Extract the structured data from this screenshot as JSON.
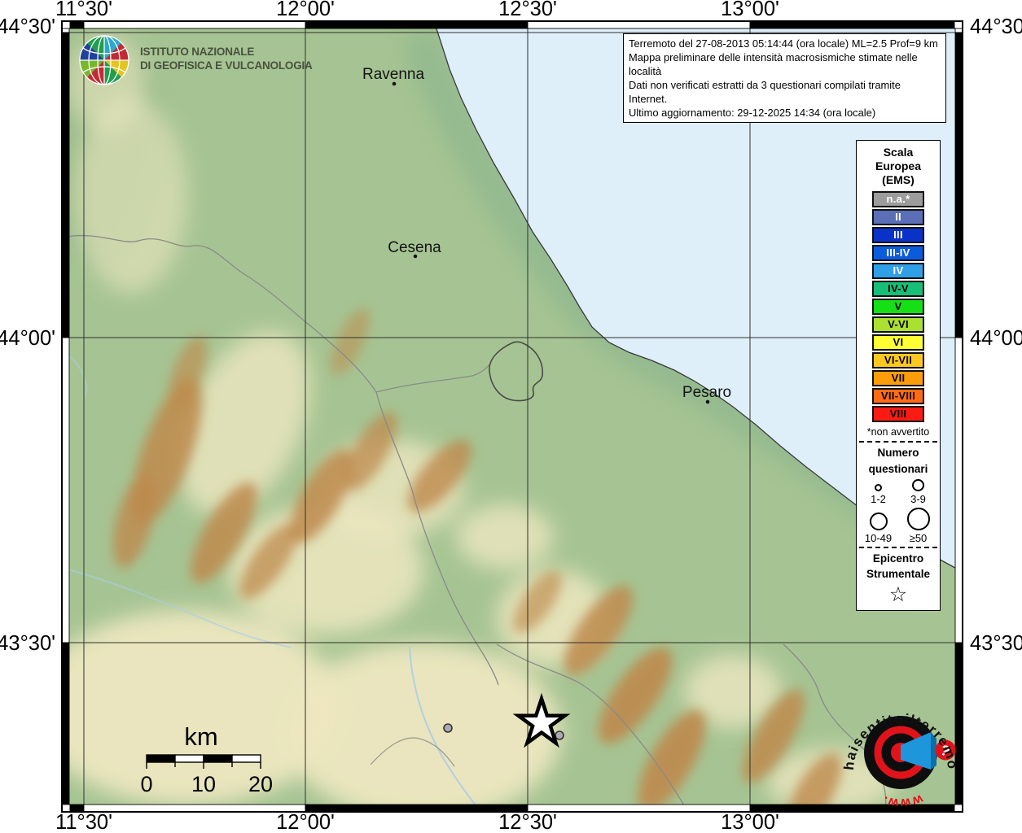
{
  "map": {
    "longitude_labels": [
      "11°30'",
      "12°00'",
      "12°30'",
      "13°00'"
    ],
    "latitude_labels": [
      "44°30'",
      "44°00'",
      "43°30'"
    ],
    "cities": [
      {
        "name": "Ravenna"
      },
      {
        "name": "Cesena"
      },
      {
        "name": "Pesaro"
      }
    ],
    "colors": {
      "sea": "#DEEFFA",
      "land": "#A6C493",
      "plain": "#EDE7C0",
      "ridge": "#BE8A4C"
    }
  },
  "info_box": {
    "lines": [
      "Terremoto del 27-08-2013 05:14:44 (ora locale) ML=2.5 Prof=9 km",
      "Mappa preliminare delle intensità macrosismiche stimate nelle località",
      "Dati non verificati estratti da 3 questionari compilati tramite Internet.",
      "Ultimo aggiornamento: 29-12-2025 14:34 (ora locale)"
    ]
  },
  "header_logo": {
    "line1": "ISTITUTO NAZIONALE",
    "line2": "DI GEOFISICA E VULCANOLOGIA"
  },
  "legend": {
    "ems": {
      "title": "Scala Europea (EMS)",
      "items": [
        {
          "label": "n.a.*",
          "color": "#9C9C9C",
          "text_color": "#FFFFFF"
        },
        {
          "label": "II",
          "color": "#5A6FB5",
          "text_color": "#FFFFFF"
        },
        {
          "label": "III",
          "color": "#0A32C8",
          "text_color": "#FFFFFF"
        },
        {
          "label": "III-IV",
          "color": "#0B5CDC",
          "text_color": "#FFFFFF"
        },
        {
          "label": "IV",
          "color": "#2FA0E8",
          "text_color": "#FFFFFF"
        },
        {
          "label": "IV-V",
          "color": "#17BE78",
          "text_color": "#000000"
        },
        {
          "label": "V",
          "color": "#15E015",
          "text_color": "#000000"
        },
        {
          "label": "V-VI",
          "color": "#ABE030",
          "text_color": "#000000"
        },
        {
          "label": "VI",
          "color": "#FFFF33",
          "text_color": "#000000"
        },
        {
          "label": "VI-VII",
          "color": "#FFC81F",
          "text_color": "#000000"
        },
        {
          "label": "VII",
          "color": "#FF9C0A",
          "text_color": "#000000"
        },
        {
          "label": "VII-VIII",
          "color": "#FF6A14",
          "text_color": "#000000"
        },
        {
          "label": "VIII",
          "color": "#FB1B12",
          "text_color": "#000000"
        }
      ],
      "footnote": "*non avvertito"
    },
    "questionnaires": {
      "title": "Numero questionari",
      "sizes": [
        {
          "label": "1-2",
          "diameter": 9
        },
        {
          "label": "3-9",
          "diameter": 15
        },
        {
          "label": "10-49",
          "diameter": 22
        },
        {
          "label": "≥50",
          "diameter": 28
        }
      ]
    },
    "epicenter": {
      "title": "Epicentro Strumentale",
      "symbol": "☆"
    }
  },
  "scale_bar": {
    "unit": "km",
    "tick_labels": [
      "0",
      "10",
      "20"
    ]
  },
  "footer_logo": {
    "text_main": "haisentitoilterremoto",
    "text_suffix": ".it",
    "text_www": "www.",
    "question_mark": "?"
  }
}
